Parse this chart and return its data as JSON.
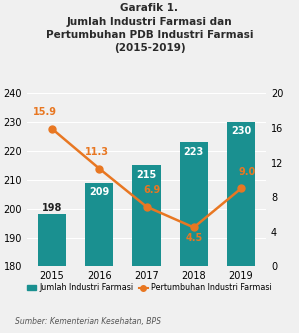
{
  "title": "Garafik 1.\nJumlah Industri Farmasi dan\nPertumbuhan PDB Industri Farmasi\n(2015-2019)",
  "years": [
    2015,
    2016,
    2017,
    2018,
    2019
  ],
  "bar_values": [
    198,
    209,
    215,
    223,
    230
  ],
  "line_values": [
    15.9,
    11.3,
    6.9,
    4.5,
    9.0
  ],
  "bar_color": "#1a9090",
  "line_color": "#E87722",
  "bar_ylim": [
    180,
    240
  ],
  "bar_yticks": [
    180,
    190,
    200,
    210,
    220,
    230,
    240
  ],
  "line_ylim": [
    0,
    20
  ],
  "line_yticks": [
    0,
    4,
    8,
    12,
    16,
    20
  ],
  "bar_legend": "Jumlah Industri Farmasi",
  "line_legend": "Pertumbuhan Industri Farmasi",
  "source": "Sumber: Kementerian Kesehatan, BPS",
  "bg_color": "#f0f0f0",
  "bar_label_color_inside": "white",
  "bar_label_color_outside": "#222222",
  "line_label_offsets": [
    1.3,
    1.3,
    1.3,
    -1.8,
    1.3
  ],
  "line_label_x_offsets": [
    -0.15,
    -0.05,
    0.12,
    0.0,
    0.12
  ]
}
